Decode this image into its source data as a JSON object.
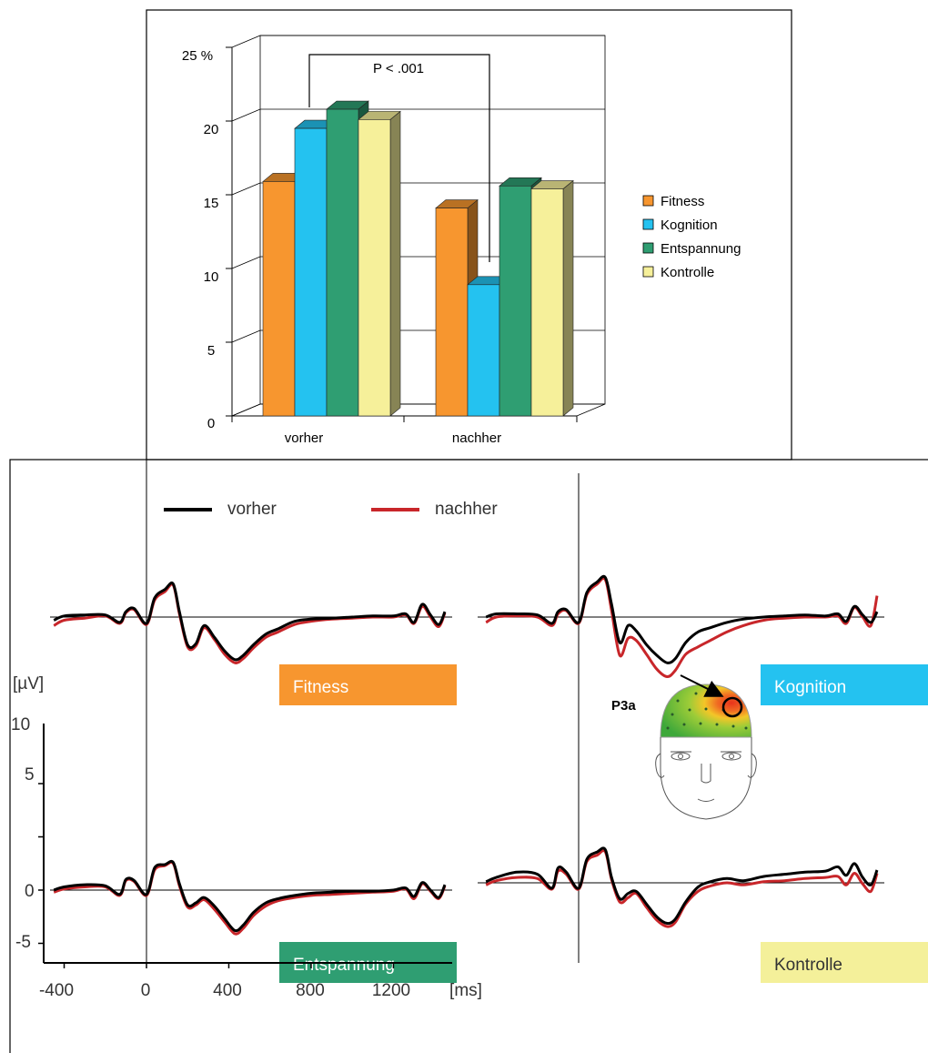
{
  "bar_chart": {
    "significance_label": "P < .001",
    "ytick_labels": [
      "0",
      "5",
      "10",
      "15",
      "20",
      "25 %"
    ]
  },
  "erp_panel": {
    "legend": [
      {
        "label": "vorher",
        "color": "#000000"
      },
      {
        "label": "nachher",
        "color": "#c8262a"
      }
    ],
    "y_unit": "[µV]",
    "y_ticks": [
      "10",
      "5",
      "0",
      "-5"
    ],
    "x_ticks": [
      "-400",
      "0",
      "400",
      "800",
      "1200"
    ],
    "x_unit": "[ms]",
    "panels": [
      {
        "label": "Fitness",
        "color": "#f7962f",
        "text_color": "#ffffff"
      },
      {
        "label": "Kognition",
        "color": "#24c2f0",
        "text_color": "#ffffff"
      },
      {
        "label": "Entspannung",
        "color": "#2f9e72",
        "text_color": "#ffffff"
      },
      {
        "label": "Kontrolle",
        "color": "#f4f09a",
        "text_color": "#333333"
      }
    ],
    "topo_label": "P3a"
  },
  "chart_data": [
    {
      "type": "bar",
      "categories": [
        "vorher",
        "nachher"
      ],
      "series": [
        {
          "name": "Fitness",
          "color": "#f7962f",
          "values": [
            15.9,
            14.1
          ]
        },
        {
          "name": "Kognition",
          "color": "#24c2f0",
          "values": [
            19.5,
            8.9
          ]
        },
        {
          "name": "Entspannung",
          "color": "#2f9e72",
          "values": [
            20.8,
            15.6
          ]
        },
        {
          "name": "Kontrolle",
          "color": "#f6f09a",
          "values": [
            20.1,
            15.4
          ]
        }
      ],
      "ylim": [
        0,
        25
      ],
      "yticks": [
        0,
        5,
        10,
        15,
        20,
        25
      ],
      "grid": true,
      "legend_position": "right",
      "annotation": "P < .001"
    },
    {
      "type": "line",
      "xlabel": "[ms]",
      "ylabel": "[µV]",
      "xlim": [
        -450,
        1500
      ],
      "ylim": [
        -8,
        10
      ],
      "xticks": [
        -400,
        0,
        400,
        800,
        1200
      ],
      "yticks": [
        -5,
        0,
        5,
        10
      ],
      "legend_position": "top",
      "panels": [
        {
          "name": "Fitness",
          "x": [
            -450,
            -400,
            -300,
            -200,
            -130,
            -100,
            -60,
            0,
            40,
            90,
            130,
            160,
            200,
            240,
            280,
            330,
            380,
            430,
            470,
            520,
            580,
            640,
            720,
            800,
            900,
            1000,
            1100,
            1200,
            1260,
            1300,
            1340,
            1380,
            1420,
            1450
          ],
          "series": [
            {
              "name": "vorher",
              "values": [
                -0.3,
                0.1,
                0.2,
                0.2,
                -0.5,
                0.5,
                0.8,
                -0.6,
                1.8,
                2.6,
                3.1,
                0.5,
                -2.6,
                -2.5,
                -0.8,
                -1.9,
                -3.2,
                -4.0,
                -3.6,
                -2.6,
                -1.6,
                -1.1,
                -0.4,
                -0.2,
                -0.1,
                0.0,
                0.1,
                0.1,
                0.3,
                -0.5,
                1.2,
                0.2,
                -0.7,
                0.5
              ]
            },
            {
              "name": "nachher",
              "values": [
                -0.8,
                -0.3,
                -0.1,
                0.1,
                -0.6,
                0.4,
                0.7,
                -0.7,
                1.6,
                2.4,
                3.0,
                0.3,
                -2.8,
                -2.7,
                -1.0,
                -2.1,
                -3.5,
                -4.3,
                -3.9,
                -2.9,
                -1.9,
                -1.4,
                -0.7,
                -0.4,
                -0.2,
                -0.1,
                0.0,
                0.0,
                0.2,
                -0.6,
                1.0,
                0.0,
                -0.9,
                0.4
              ]
            }
          ]
        },
        {
          "name": "Kognition",
          "x": [
            -450,
            -400,
            -300,
            -200,
            -130,
            -100,
            -60,
            0,
            40,
            90,
            130,
            160,
            200,
            240,
            280,
            330,
            380,
            430,
            470,
            520,
            580,
            640,
            720,
            800,
            900,
            1000,
            1100,
            1200,
            1260,
            1300,
            1340,
            1380,
            1420,
            1450
          ],
          "series": [
            {
              "name": "vorher",
              "values": [
                0.0,
                0.3,
                0.3,
                0.2,
                -0.6,
                0.5,
                0.7,
                -0.5,
                2.3,
                3.3,
                3.7,
                1.2,
                -2.4,
                -0.8,
                -1.3,
                -2.6,
                -3.6,
                -4.3,
                -3.9,
                -2.4,
                -1.4,
                -1.0,
                -0.5,
                -0.2,
                0.0,
                0.1,
                0.2,
                0.1,
                0.3,
                -0.4,
                1.0,
                0.2,
                -0.5,
                0.5
              ]
            },
            {
              "name": "nachher",
              "values": [
                -0.5,
                0.0,
                0.1,
                0.0,
                -0.8,
                0.3,
                0.6,
                -0.6,
                2.1,
                3.1,
                3.5,
                0.6,
                -3.6,
                -2.0,
                -2.2,
                -3.5,
                -4.9,
                -5.6,
                -5.0,
                -3.5,
                -2.8,
                -2.2,
                -1.4,
                -0.8,
                -0.3,
                -0.1,
                0.0,
                0.0,
                0.1,
                -0.6,
                0.9,
                0.0,
                -0.8,
                2.0
              ]
            }
          ]
        },
        {
          "name": "Entspannung",
          "x": [
            -450,
            -400,
            -300,
            -200,
            -130,
            -100,
            -60,
            0,
            40,
            90,
            130,
            160,
            200,
            240,
            280,
            330,
            380,
            430,
            470,
            520,
            580,
            640,
            720,
            800,
            900,
            1000,
            1100,
            1200,
            1260,
            1300,
            1340,
            1380,
            1420,
            1450
          ],
          "series": [
            {
              "name": "vorher",
              "values": [
                0.0,
                0.3,
                0.5,
                0.4,
                -0.4,
                1.0,
                0.9,
                -0.4,
                2.1,
                2.4,
                2.6,
                0.6,
                -1.4,
                -1.2,
                -0.7,
                -1.5,
                -2.7,
                -3.8,
                -3.3,
                -2.1,
                -1.2,
                -0.8,
                -0.5,
                -0.3,
                -0.2,
                -0.1,
                -0.1,
                0.0,
                0.2,
                -0.6,
                0.7,
                0.0,
                -0.7,
                0.5
              ]
            },
            {
              "name": "nachher",
              "values": [
                -0.2,
                0.1,
                0.3,
                0.3,
                -0.5,
                0.9,
                0.8,
                -0.5,
                1.9,
                2.3,
                2.5,
                0.4,
                -1.6,
                -1.4,
                -0.9,
                -1.8,
                -3.0,
                -4.1,
                -3.6,
                -2.4,
                -1.5,
                -1.0,
                -0.7,
                -0.5,
                -0.4,
                -0.3,
                -0.2,
                -0.1,
                0.1,
                -0.8,
                0.6,
                -0.1,
                -0.8,
                0.4
              ]
            }
          ]
        },
        {
          "name": "Kontrolle",
          "x": [
            -450,
            -400,
            -300,
            -200,
            -130,
            -100,
            -60,
            0,
            40,
            90,
            130,
            160,
            200,
            240,
            280,
            330,
            380,
            430,
            470,
            520,
            580,
            640,
            720,
            800,
            900,
            1000,
            1100,
            1200,
            1260,
            1300,
            1340,
            1380,
            1420,
            1450
          ],
          "series": [
            {
              "name": "vorher",
              "values": [
                0.1,
                0.5,
                1.0,
                0.8,
                -0.5,
                1.4,
                1.0,
                -0.5,
                2.2,
                2.9,
                3.1,
                0.5,
                -1.5,
                -1.0,
                -0.8,
                -2.0,
                -3.2,
                -3.8,
                -3.4,
                -1.8,
                -0.4,
                0.1,
                0.4,
                0.2,
                0.6,
                0.8,
                1.0,
                1.1,
                1.5,
                0.7,
                1.8,
                0.5,
                -0.2,
                1.2
              ]
            },
            {
              "name": "nachher",
              "values": [
                -0.2,
                0.2,
                0.5,
                0.4,
                -0.6,
                1.1,
                0.8,
                -0.6,
                2.0,
                2.6,
                2.9,
                0.3,
                -1.8,
                -1.4,
                -1.0,
                -2.3,
                -3.5,
                -4.1,
                -3.7,
                -2.0,
                -0.8,
                -0.3,
                0.0,
                -0.2,
                0.1,
                0.2,
                0.4,
                0.5,
                0.6,
                -0.2,
                0.9,
                -0.1,
                -0.8,
                0.9
              ]
            }
          ]
        }
      ]
    }
  ]
}
